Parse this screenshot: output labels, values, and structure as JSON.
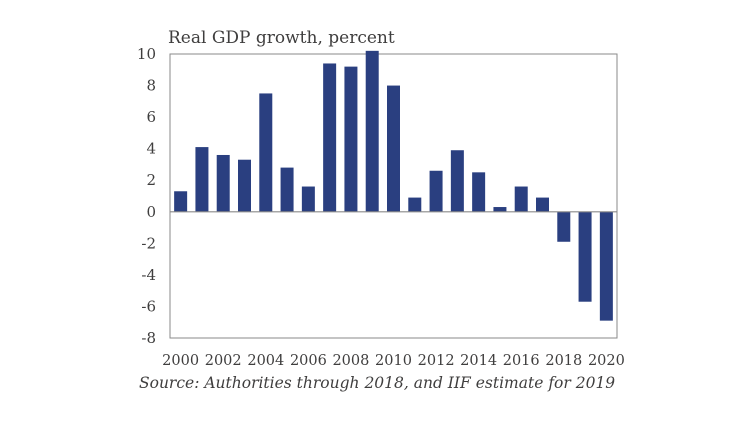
{
  "page": {
    "background": "#ffffff"
  },
  "chart_data": {
    "type": "bar",
    "title": "Real GDP growth, percent",
    "source_note": "Source: Authorities through 2018, and IIF estimate for 2019",
    "xlabel": "",
    "ylabel": "",
    "categories": [
      "2000",
      "2001",
      "2002",
      "2003",
      "2004",
      "2005",
      "2006",
      "2007",
      "2008",
      "2009",
      "2010",
      "2011",
      "2012",
      "2013",
      "2014",
      "2015",
      "2016",
      "2017",
      "2018",
      "2019",
      "2020"
    ],
    "values": [
      1.3,
      4.1,
      3.6,
      3.3,
      7.5,
      2.8,
      1.6,
      9.4,
      9.2,
      10.2,
      8.0,
      0.9,
      2.6,
      3.9,
      2.5,
      0.3,
      1.6,
      0.9,
      -1.9,
      -5.7,
      -6.9
    ],
    "ylim": [
      -8,
      10
    ],
    "yticks": [
      10,
      8,
      6,
      4,
      2,
      0,
      -2,
      -4,
      -6,
      -8
    ],
    "xtick_labels": [
      "2000",
      "2002",
      "2004",
      "2006",
      "2008",
      "2010",
      "2012",
      "2014",
      "2016",
      "2018",
      "2020"
    ],
    "grid": false,
    "legend": null,
    "colors": {
      "bar": "#2a3f80",
      "axis": "#8a8a8a",
      "text": "#3f3e3e"
    }
  }
}
